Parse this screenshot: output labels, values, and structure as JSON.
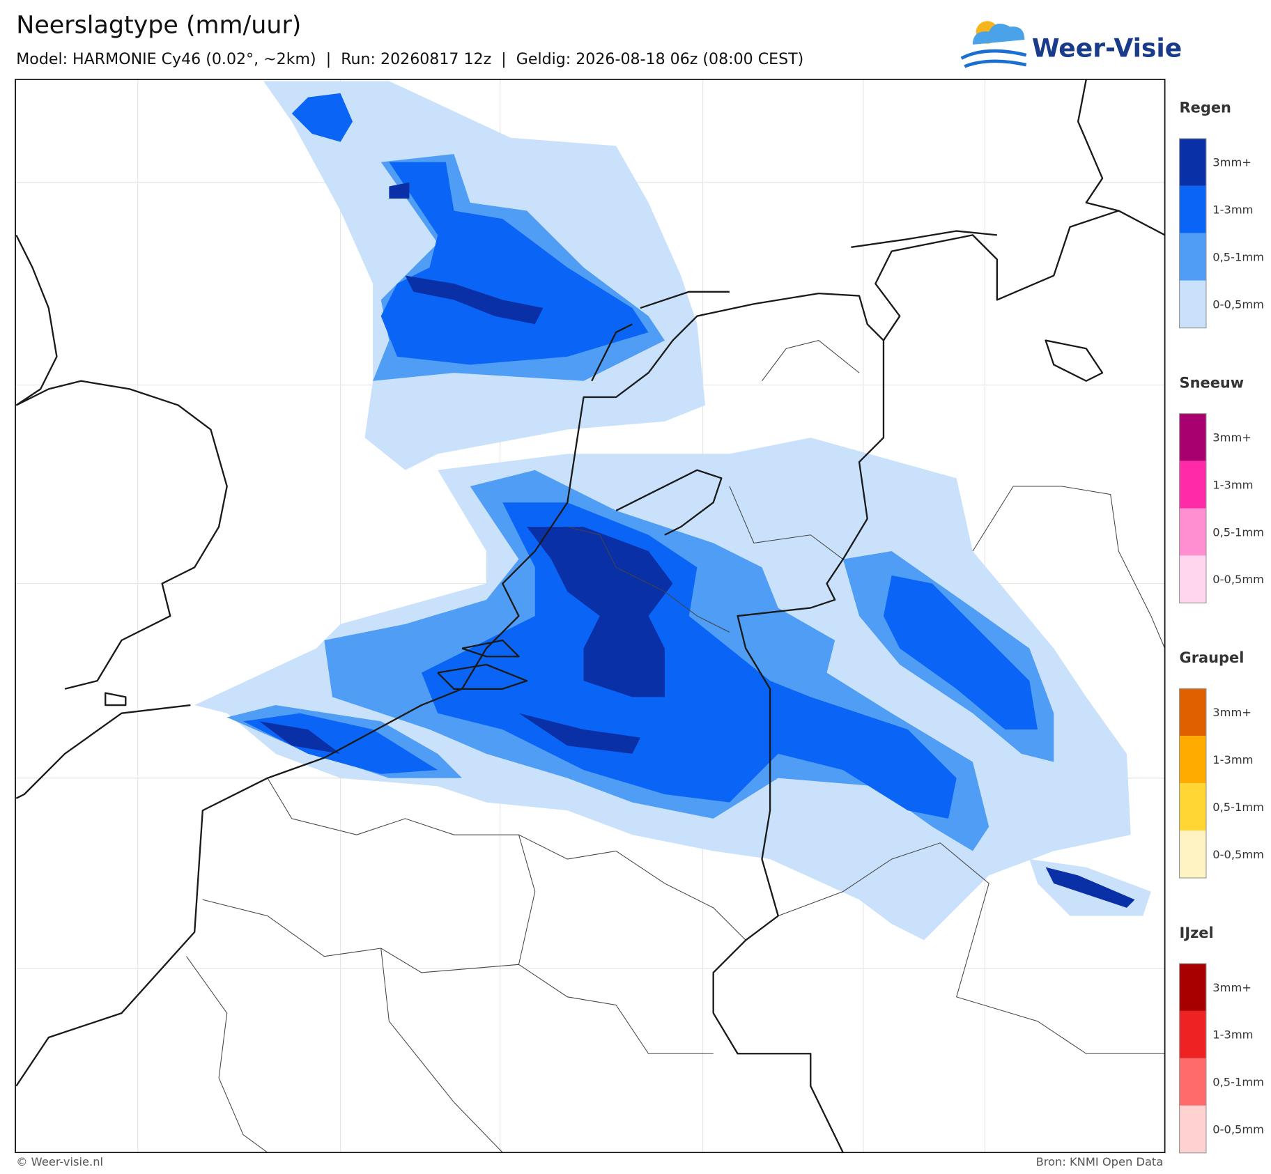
{
  "header": {
    "title": "Neerslagtype (mm/uur)",
    "subtitle": "Model: HARMONIE Cy46 (0.02°, ~2km)  |  Run: 20260817 12z  |  Geldig: 2026-08-18 06z (08:00 CEST)"
  },
  "logo": {
    "text": "Weer-Visie"
  },
  "legend": [
    {
      "title": "Regen",
      "items": [
        {
          "label": "3mm+",
          "color": "#0a30a8"
        },
        {
          "label": "1-3mm",
          "color": "#0a64f5"
        },
        {
          "label": "0,5-1mm",
          "color": "#4f9df5"
        },
        {
          "label": "0-0,5mm",
          "color": "#c9e1fb"
        }
      ]
    },
    {
      "title": "Sneeuw",
      "items": [
        {
          "label": "3mm+",
          "color": "#a8006e"
        },
        {
          "label": "1-3mm",
          "color": "#ff2aa8"
        },
        {
          "label": "0,5-1mm",
          "color": "#ff8fd0"
        },
        {
          "label": "0-0,5mm",
          "color": "#ffd6ee"
        }
      ]
    },
    {
      "title": "Graupel",
      "items": [
        {
          "label": "3mm+",
          "color": "#e06000"
        },
        {
          "label": "1-3mm",
          "color": "#ffab00"
        },
        {
          "label": "0,5-1mm",
          "color": "#ffd633"
        },
        {
          "label": "0-0,5mm",
          "color": "#fff3c4"
        }
      ]
    },
    {
      "title": "IJzel",
      "items": [
        {
          "label": "3mm+",
          "color": "#a80000"
        },
        {
          "label": "1-3mm",
          "color": "#ee2222"
        },
        {
          "label": "0,5-1mm",
          "color": "#ff6b6b"
        },
        {
          "label": "0-0,5mm",
          "color": "#ffd2d2"
        }
      ]
    }
  ],
  "footer": {
    "copyright": "© Weer-visie.nl",
    "source": "Bron: KNMI Open Data"
  }
}
